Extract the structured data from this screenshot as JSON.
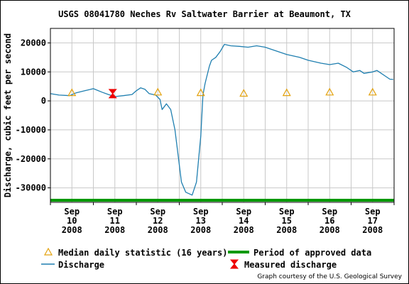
{
  "chart_data": {
    "type": "line",
    "title": "USGS 08041780 Neches Rv Saltwater Barrier at Beaumont, TX",
    "ylabel": "Discharge, cubic feet per second",
    "xlabel": "",
    "xlim": [
      0,
      8
    ],
    "ylim": [
      -35000,
      25000
    ],
    "yticks": [
      20000,
      10000,
      0,
      -10000,
      -20000,
      -30000
    ],
    "ytick_labels": [
      "20000",
      "10000",
      "0",
      "-10000",
      "-20000",
      "-30000"
    ],
    "xtick_positions": [
      0.5,
      1.5,
      2.5,
      3.5,
      4.5,
      5.5,
      6.5,
      7.5
    ],
    "xtick_labels": [
      [
        "Sep",
        "10",
        "2008"
      ],
      [
        "Sep",
        "11",
        "2008"
      ],
      [
        "Sep",
        "12",
        "2008"
      ],
      [
        "Sep",
        "13",
        "2008"
      ],
      [
        "Sep",
        "14",
        "2008"
      ],
      [
        "Sep",
        "15",
        "2008"
      ],
      [
        "Sep",
        "16",
        "2008"
      ],
      [
        "Sep",
        "17",
        "2008"
      ]
    ],
    "grid": true,
    "legend_placement": "bottom",
    "series": [
      {
        "name": "Discharge",
        "color": "#1f7fb0",
        "x": [
          0.0,
          0.2,
          0.45,
          0.6,
          0.8,
          1.0,
          1.2,
          1.35,
          1.5,
          1.7,
          1.9,
          2.0,
          2.1,
          2.2,
          2.3,
          2.45,
          2.55,
          2.6,
          2.7,
          2.8,
          2.9,
          3.0,
          3.05,
          3.15,
          3.3,
          3.4,
          3.5,
          3.55,
          3.6,
          3.7,
          3.75,
          3.85,
          3.95,
          4.05,
          4.2,
          4.4,
          4.6,
          4.8,
          5.0,
          5.2,
          5.5,
          5.8,
          6.0,
          6.3,
          6.5,
          6.7,
          6.9,
          7.05,
          7.2,
          7.3,
          7.5,
          7.6,
          7.7,
          7.8,
          7.9,
          7.98
        ],
        "y": [
          2500,
          2000,
          1800,
          2800,
          3500,
          4200,
          3000,
          2200,
          1500,
          1800,
          2200,
          3500,
          4500,
          4000,
          2500,
          2000,
          500,
          -3000,
          -1000,
          -3000,
          -10000,
          -22000,
          -28000,
          -31500,
          -32500,
          -28000,
          -12000,
          2000,
          6000,
          12000,
          14000,
          15000,
          17000,
          19500,
          19000,
          18800,
          18500,
          19000,
          18500,
          17500,
          16000,
          15000,
          14000,
          13000,
          12500,
          13000,
          11500,
          10000,
          10500,
          9500,
          10000,
          10500,
          9500,
          8500,
          7500,
          7400
        ]
      }
    ],
    "median_daily_statistic": {
      "name": "Median daily statistic (16 years)",
      "color": "#e3a20f",
      "x": [
        0.5,
        2.5,
        3.5,
        4.5,
        5.5,
        6.5,
        7.5
      ],
      "y": [
        2800,
        3000,
        2800,
        2600,
        2800,
        3000,
        3000
      ]
    },
    "measured_discharge": {
      "name": "Measured discharge",
      "color": "#ee0000",
      "x": [
        1.45
      ],
      "y": [
        2500
      ]
    },
    "period_of_approved_data": {
      "name": "Period of approved data",
      "color": "#009900",
      "x_range": [
        0,
        8
      ]
    },
    "colors": {
      "grid": "#c8c8c8",
      "axis": "#000000"
    }
  },
  "legend": {
    "median_label": "Median daily statistic (16 years)",
    "approved_label": "Period of approved data",
    "discharge_label": "Discharge",
    "measured_label": "Measured discharge"
  },
  "credit": "Graph courtesy of the U.S. Geological Survey"
}
